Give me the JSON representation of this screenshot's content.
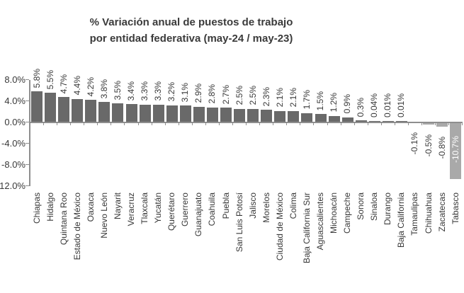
{
  "title": {
    "line1": "% Variación anual de puestos de trabajo",
    "line2": "por entidad federativa (may-24 / may-23)"
  },
  "chart_data": {
    "type": "bar",
    "title": "% Variación anual de puestos de trabajo por entidad federativa (may-24 / may-23)",
    "xlabel": "",
    "ylabel": "",
    "grid": false,
    "legend": false,
    "ylim": [
      -12,
      8
    ],
    "categories": [
      "Chiapas",
      "Hidalgo",
      "Quintana Roo",
      "Estado de México",
      "Oaxaca",
      "Nuevo León",
      "Nayarit",
      "Veracruz",
      "Tlaxcala",
      "Yucatán",
      "Querétaro",
      "Guerrero",
      "Guanajuato",
      "Coahuila",
      "Puebla",
      "San Luis Potosí",
      "Jalisco",
      "Morelos",
      "Ciudad de México",
      "Colima",
      "Baja California Sur",
      "Aguascalientes",
      "Michoacán",
      "Campeche",
      "Sonora",
      "Sinaloa",
      "Durango",
      "Baja California",
      "Tamaulipas",
      "Chihuahua",
      "Zacatecas",
      "Tabasco"
    ],
    "values": [
      5.8,
      5.5,
      4.7,
      4.4,
      4.2,
      3.8,
      3.5,
      3.4,
      3.3,
      3.3,
      3.2,
      3.1,
      2.9,
      2.8,
      2.7,
      2.5,
      2.5,
      2.3,
      2.1,
      2.1,
      1.7,
      1.5,
      1.2,
      0.9,
      0.3,
      0.04,
      0.01,
      0.01,
      -0.1,
      -0.5,
      -0.8,
      -10.7
    ],
    "value_labels": [
      "5.8%",
      "5.5%",
      "4.7%",
      "4.4%",
      "4.2%",
      "3.8%",
      "3.5%",
      "3.4%",
      "3.3%",
      "3.3%",
      "3.2%",
      "3.1%",
      "2.9%",
      "2.8%",
      "2.7%",
      "2.5%",
      "2.5%",
      "2.3%",
      "2.1%",
      "2.1%",
      "1.7%",
      "1.5%",
      "1.2%",
      "0.9%",
      "0.3%",
      "0.04%",
      "0.01%",
      "0.01%",
      "-0.1%",
      "-0.5%",
      "-0.8%",
      "-10.7%"
    ],
    "y_ticks": [
      {
        "value": 8,
        "label": "8.0%"
      },
      {
        "value": 4,
        "label": "4.0%"
      },
      {
        "value": 0,
        "label": "0.0%"
      },
      {
        "value": -4,
        "label": "-4.0%"
      },
      {
        "value": -8,
        "label": "-8.0%"
      },
      {
        "value": -12,
        "label": "-12.0%"
      }
    ],
    "colors": {
      "bar_positive": "#696969",
      "bar_negative": "#a9a9a9",
      "axis": "#8e8e8e",
      "text": "#383838",
      "inside_label": "#ffffff"
    }
  }
}
